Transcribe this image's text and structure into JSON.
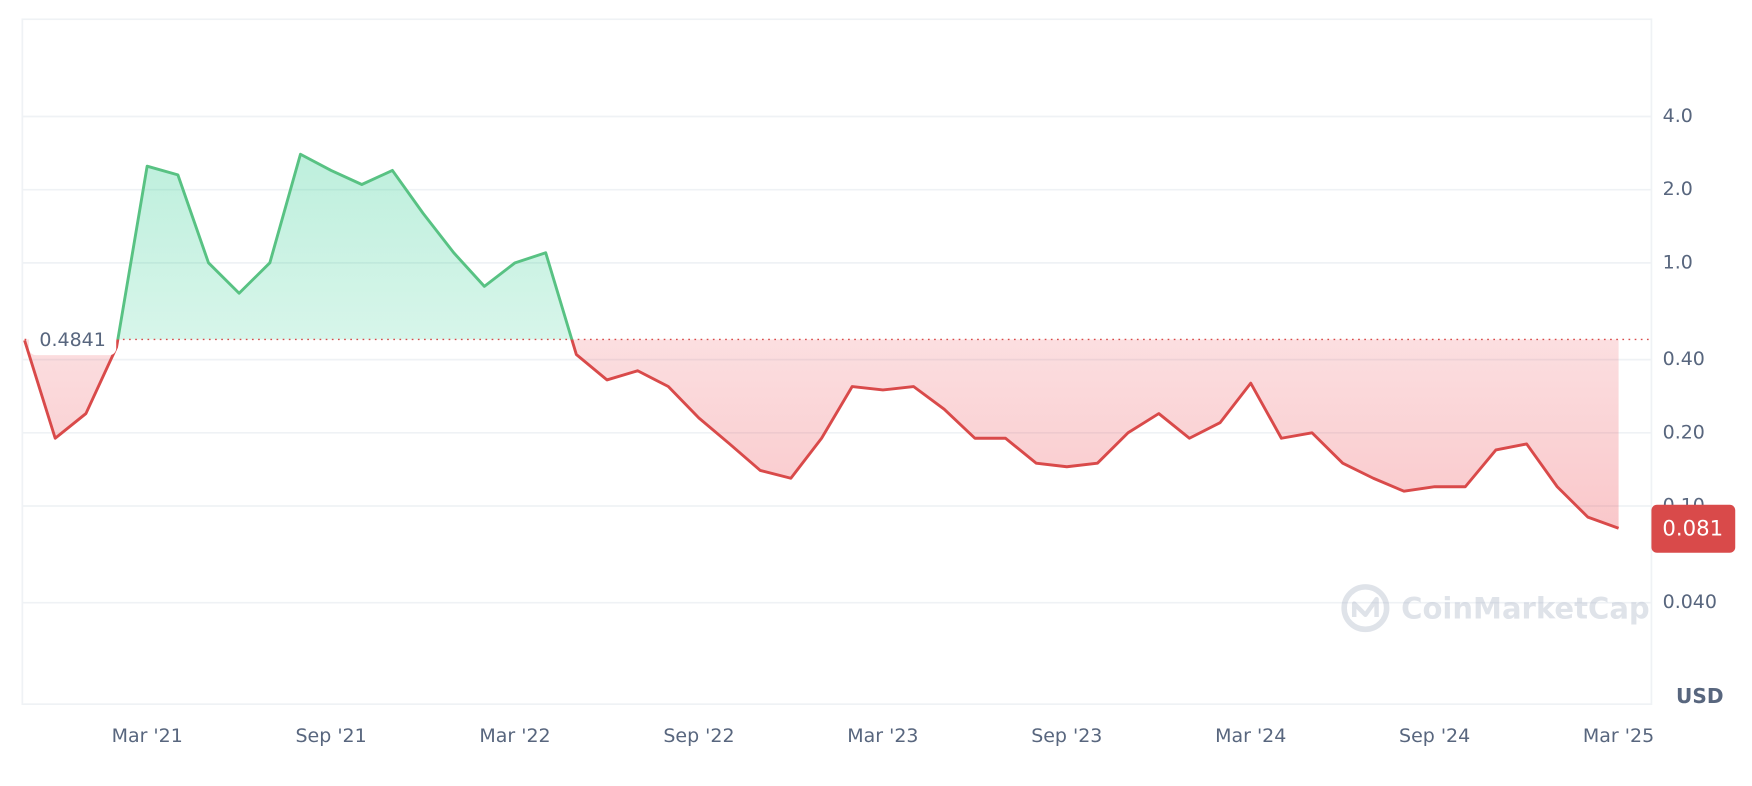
{
  "chart_data": {
    "type": "line",
    "x": [
      "2020-11",
      "2020-12",
      "2021-01",
      "2021-02",
      "2021-03",
      "2021-04",
      "2021-05",
      "2021-06",
      "2021-07",
      "2021-08",
      "2021-09",
      "2021-10",
      "2021-11",
      "2021-12",
      "2022-01",
      "2022-02",
      "2022-03",
      "2022-04",
      "2022-05",
      "2022-06",
      "2022-07",
      "2022-08",
      "2022-09",
      "2022-10",
      "2022-11",
      "2022-12",
      "2023-01",
      "2023-02",
      "2023-03",
      "2023-04",
      "2023-05",
      "2023-06",
      "2023-07",
      "2023-08",
      "2023-09",
      "2023-10",
      "2023-11",
      "2023-12",
      "2024-01",
      "2024-02",
      "2024-03",
      "2024-04",
      "2024-05",
      "2024-06",
      "2024-07",
      "2024-08",
      "2024-09",
      "2024-10",
      "2024-11",
      "2024-12",
      "2025-01",
      "2025-02",
      "2025-03"
    ],
    "values": [
      0.48,
      0.19,
      0.24,
      0.45,
      2.5,
      2.3,
      1.0,
      0.75,
      1.0,
      2.8,
      2.4,
      2.1,
      2.4,
      1.6,
      1.1,
      0.8,
      1.0,
      1.1,
      0.42,
      0.33,
      0.36,
      0.31,
      0.23,
      0.18,
      0.14,
      0.13,
      0.19,
      0.31,
      0.3,
      0.31,
      0.25,
      0.19,
      0.19,
      0.15,
      0.145,
      0.15,
      0.2,
      0.24,
      0.19,
      0.22,
      0.32,
      0.19,
      0.2,
      0.15,
      0.13,
      0.115,
      0.12,
      0.12,
      0.17,
      0.18,
      0.12,
      0.09,
      0.081
    ],
    "baseline": 0.4841,
    "up_color": "#58c283",
    "down_color": "#d94a4a",
    "log_scale": true,
    "grid": true,
    "ylim": [
      0.0153,
      10.05
    ],
    "yticks": [
      {
        "value": 4,
        "label": "4.0"
      },
      {
        "value": 2,
        "label": "2.0"
      },
      {
        "value": 1,
        "label": "1.0"
      },
      {
        "value": 0.4,
        "label": "0.40"
      },
      {
        "value": 0.2,
        "label": "0.20"
      },
      {
        "value": 0.1,
        "label": "0.10"
      },
      {
        "value": 0.04,
        "label": "0.040"
      }
    ],
    "xlim": [
      "2020-11",
      "2025-04"
    ],
    "xticks": [
      {
        "value": "2021-03",
        "label": "Mar '21"
      },
      {
        "value": "2021-09",
        "label": "Sep '21"
      },
      {
        "value": "2022-03",
        "label": "Mar '22"
      },
      {
        "value": "2022-09",
        "label": "Sep '22"
      },
      {
        "value": "2023-03",
        "label": "Mar '23"
      },
      {
        "value": "2023-09",
        "label": "Sep '23"
      },
      {
        "value": "2024-03",
        "label": "Mar '24"
      },
      {
        "value": "2024-09",
        "label": "Sep '24"
      },
      {
        "value": "2025-03",
        "label": "Mar '25"
      }
    ],
    "currency": "USD",
    "watermark": "CoinMarketCap"
  }
}
